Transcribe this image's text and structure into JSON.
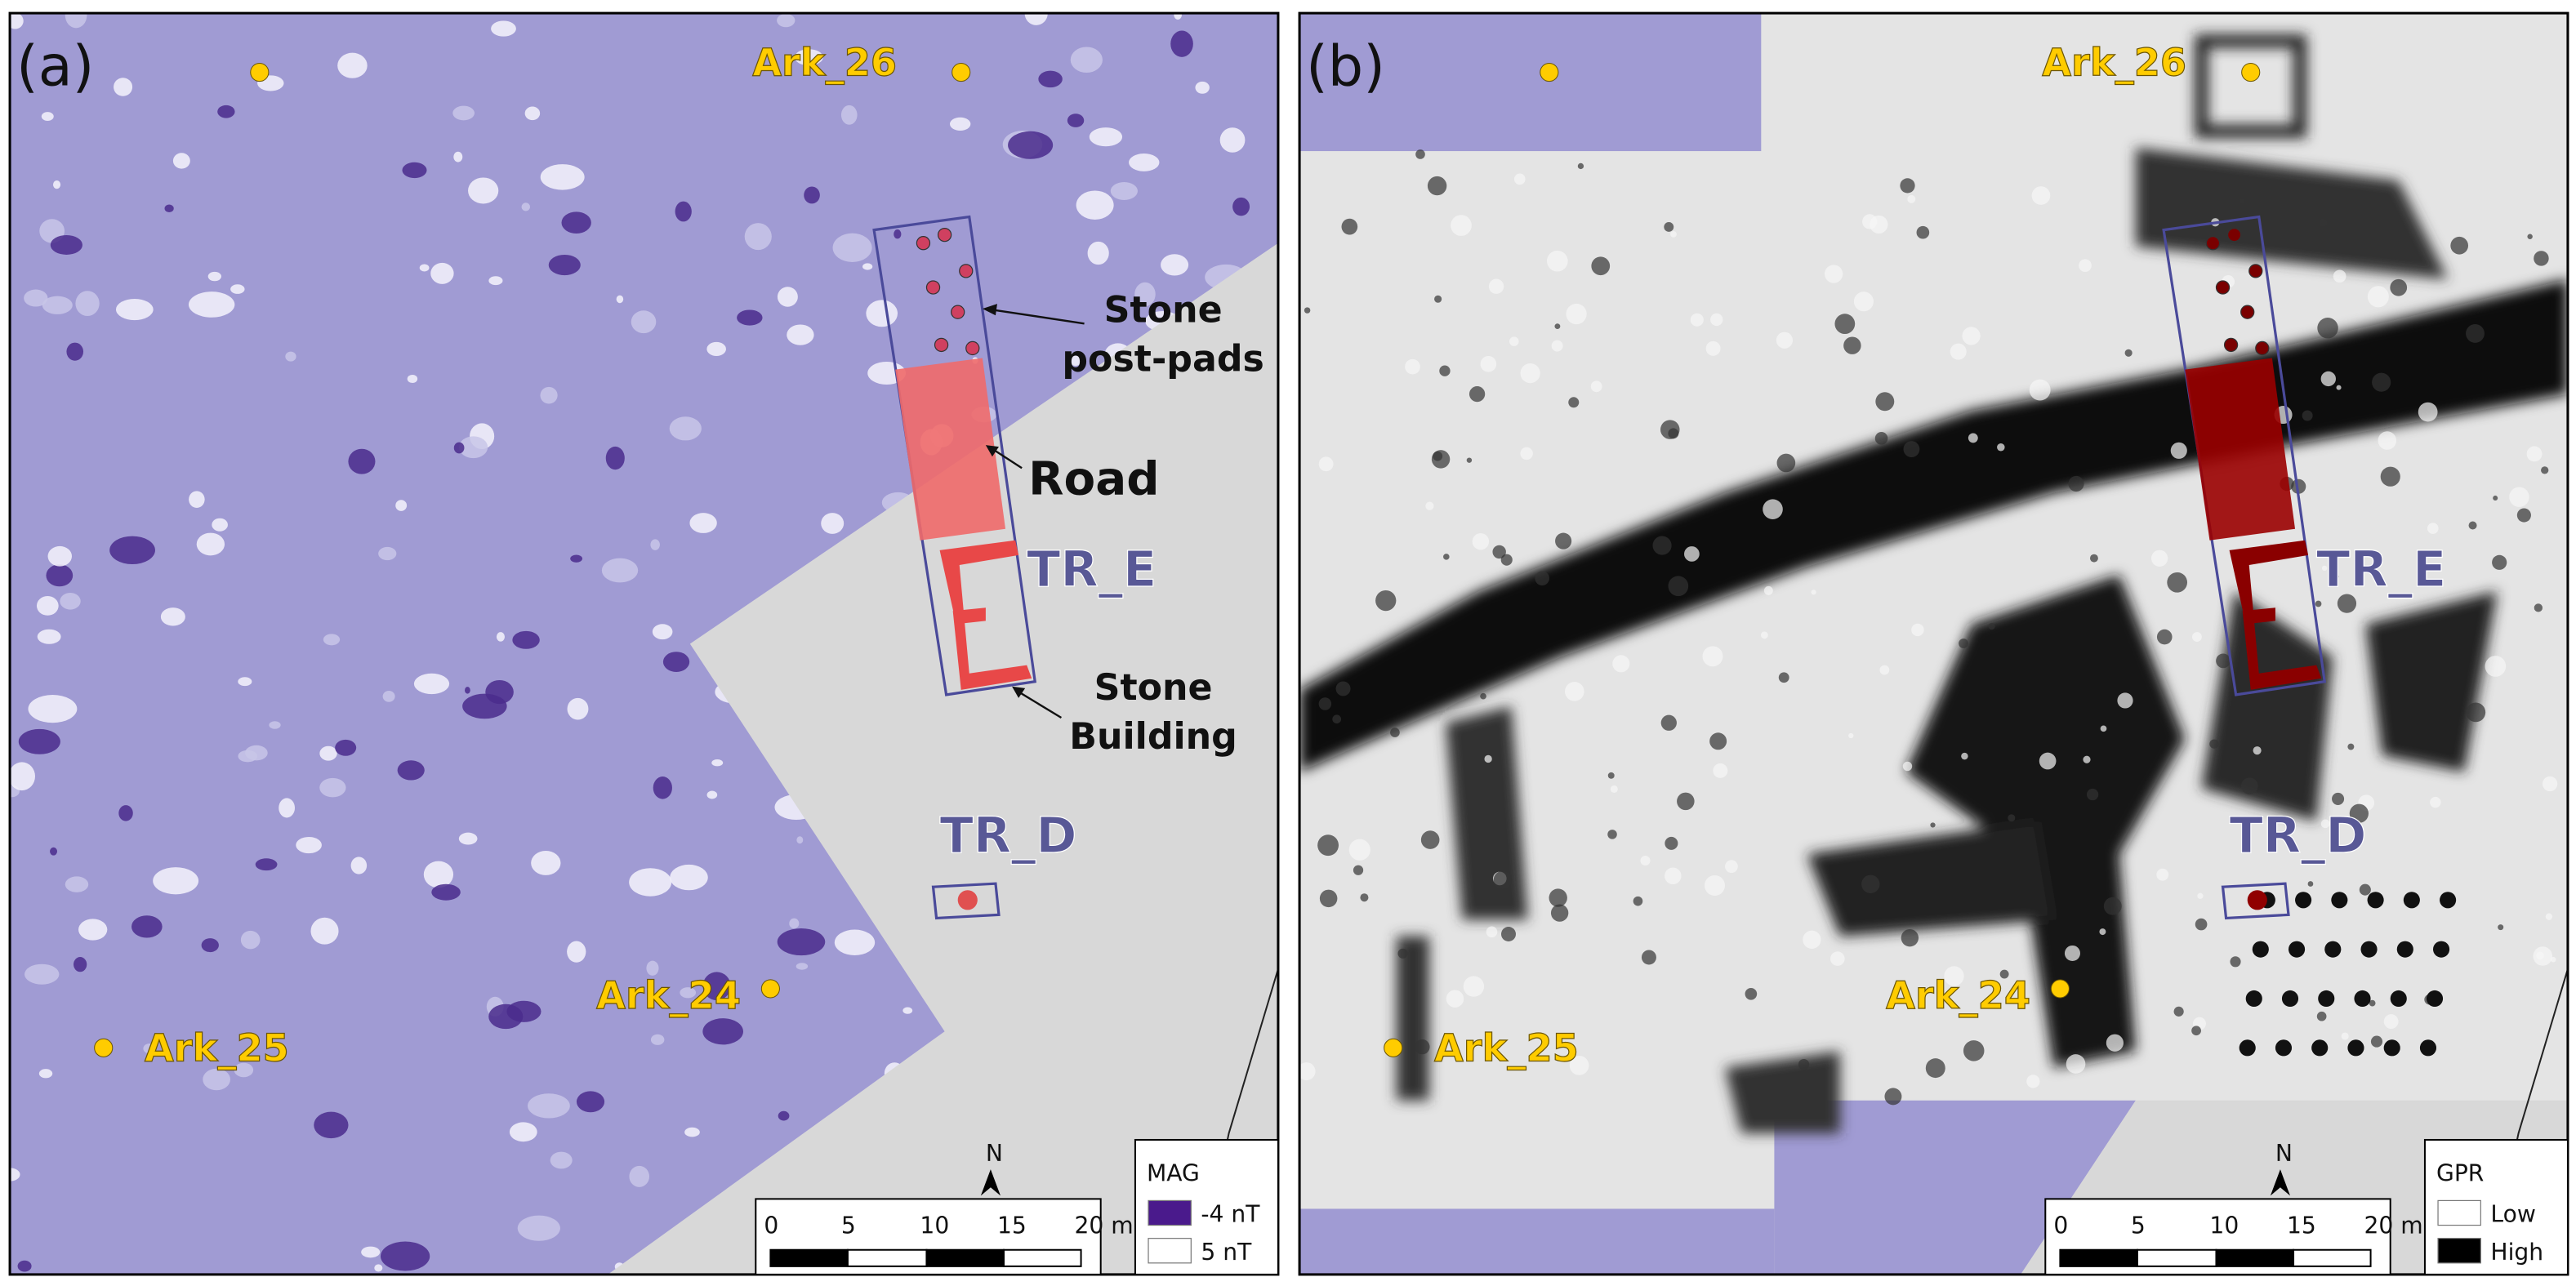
{
  "panels": [
    {
      "label": "(a)",
      "points": [
        "Ark_26",
        "Ark_24",
        "Ark_25"
      ],
      "trenches": [
        "TR_E",
        "TR_D"
      ],
      "annotations": {
        "post_pads": [
          "Stone",
          "post-pads"
        ],
        "road": "Road",
        "building": [
          "Stone",
          "Building"
        ]
      },
      "north": "N",
      "scale_bar": [
        "0",
        "5",
        "10",
        "15",
        "20 m"
      ],
      "legend": {
        "title": "MAG",
        "items": [
          "-4 nT",
          "5 nT"
        ]
      }
    },
    {
      "label": "(b)",
      "points": [
        "Ark_26",
        "Ark_24",
        "Ark_25"
      ],
      "trenches": [
        "TR_E",
        "TR_D"
      ],
      "north": "N",
      "scale_bar": [
        "0",
        "5",
        "10",
        "15",
        "20 m"
      ],
      "legend": {
        "title": "GPR",
        "items": [
          "Low",
          "High"
        ]
      }
    }
  ]
}
